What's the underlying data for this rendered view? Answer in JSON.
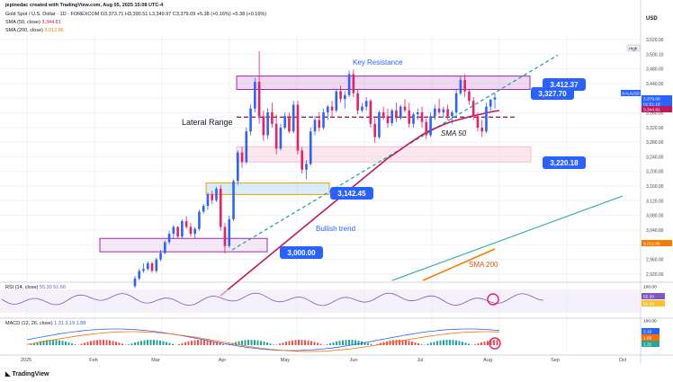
{
  "header": {
    "attribution": "jepinedac created with TradingView.com, Aug 05, 2025 15:08 UTC-4",
    "title": "Gold Spot / U.S. Dollar · 1D · FOREXCOM",
    "ohlc": "O3,373.71  H3,390.51  L3,349.97  C3,379.09  +5.38 (+0.16%)  +5.38 (+0.16%)",
    "sma50_legend": "SMA (50, close)",
    "sma50_value": "3,344.81",
    "sma200_legend": "SMA (200, close)",
    "sma200_value": "3,012.86"
  },
  "currency": "USD",
  "footer_logo": "TradingView",
  "colors": {
    "up": "#2962ff",
    "down": "#e91e63",
    "sma50": "#c2185b",
    "sma200": "#f57c00",
    "trendline": "#26a69a",
    "zone_purple": "#9c27b0",
    "zone_pink": "#f48fb1",
    "zone_blue": "#90caf9",
    "label_blue": "#2962ff",
    "grid": "#f0f3fa"
  },
  "annotations": {
    "key_resistance": "Key Resistance",
    "lateral_range": "Lateral Range",
    "bullish_trend": "Bullish trend",
    "sma50": "SMA 50",
    "sma200": "SMA 200",
    "levels": [
      "3,412.37",
      "3,327.70",
      "3,220.18",
      "3,142.45",
      "3,000.00"
    ],
    "high_tag": "High"
  },
  "price_axis": {
    "ticks": [
      "3,520.00",
      "3,500.10",
      "3,480.00",
      "3,440.00",
      "3,400.00",
      "3,360.00",
      "3,320.00",
      "3,280.00",
      "3,240.00",
      "3,200.00",
      "3,160.00",
      "3,120.00",
      "3,080.00",
      "3,040.00",
      "3,000.00",
      "2,960.00",
      "2,920.00"
    ],
    "tags": [
      {
        "text": "XAUUSD",
        "color": "#2962ff"
      },
      {
        "text": "3,379.09",
        "color": "#2962ff"
      },
      {
        "text": "01:51:18",
        "color": "#2962ff"
      },
      {
        "text": "3,344.81",
        "color": "#c2185b"
      },
      {
        "text": "3,012.86",
        "color": "#f57c00"
      }
    ]
  },
  "rsi": {
    "legend": "RSI (14, close)",
    "values_text": "55.30  51.68",
    "ticks": [
      "100.00",
      "55.30",
      "51.68"
    ]
  },
  "macd": {
    "legend": "MACD (12, 26, close)",
    "values_text": "1.31  3.19  1.88",
    "ticks": [
      "100.00",
      "3.19",
      "1.88",
      "1.31"
    ]
  },
  "time_axis": [
    "2025",
    "Feb",
    "Mar",
    "Apr",
    "May",
    "Jun",
    "Jul",
    "Aug",
    "Sep",
    "Oct"
  ],
  "chart_data": {
    "type": "candlestick",
    "title": "Gold Spot / U.S. Dollar · 1D · FOREXCOM",
    "ylim": [
      2900,
      3540
    ],
    "candles": [
      {
        "o": 2885,
        "h": 2912,
        "l": 2880,
        "c": 2905
      },
      {
        "o": 2905,
        "h": 2930,
        "l": 2900,
        "c": 2925
      },
      {
        "o": 2925,
        "h": 2945,
        "l": 2920,
        "c": 2930
      },
      {
        "o": 2930,
        "h": 2950,
        "l": 2925,
        "c": 2945
      },
      {
        "o": 2945,
        "h": 2950,
        "l": 2920,
        "c": 2925
      },
      {
        "o": 2925,
        "h": 2960,
        "l": 2920,
        "c": 2955
      },
      {
        "o": 2955,
        "h": 2980,
        "l": 2950,
        "c": 2972
      },
      {
        "o": 2972,
        "h": 3005,
        "l": 2968,
        "c": 3000
      },
      {
        "o": 3000,
        "h": 3030,
        "l": 2995,
        "c": 3022
      },
      {
        "o": 3022,
        "h": 3045,
        "l": 3010,
        "c": 3040
      },
      {
        "o": 3040,
        "h": 3042,
        "l": 3010,
        "c": 3015
      },
      {
        "o": 3015,
        "h": 3060,
        "l": 3010,
        "c": 3055
      },
      {
        "o": 3055,
        "h": 3068,
        "l": 3035,
        "c": 3040
      },
      {
        "o": 3040,
        "h": 3050,
        "l": 3015,
        "c": 3022
      },
      {
        "o": 3022,
        "h": 3040,
        "l": 3010,
        "c": 3035
      },
      {
        "o": 3035,
        "h": 3085,
        "l": 3030,
        "c": 3080
      },
      {
        "o": 3080,
        "h": 3100,
        "l": 3075,
        "c": 3095
      },
      {
        "o": 3095,
        "h": 3130,
        "l": 3085,
        "c": 3125
      },
      {
        "o": 3125,
        "h": 3135,
        "l": 3100,
        "c": 3110
      },
      {
        "o": 3110,
        "h": 3145,
        "l": 3105,
        "c": 3140
      },
      {
        "o": 3140,
        "h": 3150,
        "l": 3030,
        "c": 3040
      },
      {
        "o": 3040,
        "h": 3050,
        "l": 2970,
        "c": 2990
      },
      {
        "o": 2990,
        "h": 3070,
        "l": 2985,
        "c": 3060
      },
      {
        "o": 3060,
        "h": 3165,
        "l": 3055,
        "c": 3160
      },
      {
        "o": 3160,
        "h": 3240,
        "l": 3150,
        "c": 3235
      },
      {
        "o": 3235,
        "h": 3250,
        "l": 3195,
        "c": 3210
      },
      {
        "o": 3210,
        "h": 3300,
        "l": 3205,
        "c": 3290
      },
      {
        "o": 3290,
        "h": 3360,
        "l": 3280,
        "c": 3350
      },
      {
        "o": 3350,
        "h": 3430,
        "l": 3340,
        "c": 3420
      },
      {
        "o": 3420,
        "h": 3500,
        "l": 3310,
        "c": 3330
      },
      {
        "o": 3330,
        "h": 3345,
        "l": 3265,
        "c": 3280
      },
      {
        "o": 3280,
        "h": 3350,
        "l": 3270,
        "c": 3340
      },
      {
        "o": 3340,
        "h": 3365,
        "l": 3300,
        "c": 3310
      },
      {
        "o": 3310,
        "h": 3335,
        "l": 3230,
        "c": 3245
      },
      {
        "o": 3245,
        "h": 3310,
        "l": 3240,
        "c": 3300
      },
      {
        "o": 3300,
        "h": 3340,
        "l": 3295,
        "c": 3330
      },
      {
        "o": 3330,
        "h": 3340,
        "l": 3285,
        "c": 3290
      },
      {
        "o": 3290,
        "h": 3370,
        "l": 3285,
        "c": 3360
      },
      {
        "o": 3360,
        "h": 3370,
        "l": 3230,
        "c": 3240
      },
      {
        "o": 3240,
        "h": 3250,
        "l": 3180,
        "c": 3190
      },
      {
        "o": 3190,
        "h": 3215,
        "l": 3165,
        "c": 3205
      },
      {
        "o": 3205,
        "h": 3300,
        "l": 3200,
        "c": 3290
      },
      {
        "o": 3290,
        "h": 3330,
        "l": 3280,
        "c": 3320
      },
      {
        "o": 3320,
        "h": 3340,
        "l": 3290,
        "c": 3300
      },
      {
        "o": 3300,
        "h": 3350,
        "l": 3295,
        "c": 3340
      },
      {
        "o": 3340,
        "h": 3360,
        "l": 3320,
        "c": 3355
      },
      {
        "o": 3355,
        "h": 3370,
        "l": 3330,
        "c": 3345
      },
      {
        "o": 3345,
        "h": 3400,
        "l": 3340,
        "c": 3395
      },
      {
        "o": 3395,
        "h": 3410,
        "l": 3365,
        "c": 3375
      },
      {
        "o": 3375,
        "h": 3395,
        "l": 3350,
        "c": 3385
      },
      {
        "o": 3385,
        "h": 3450,
        "l": 3380,
        "c": 3440
      },
      {
        "o": 3440,
        "h": 3452,
        "l": 3380,
        "c": 3390
      },
      {
        "o": 3390,
        "h": 3400,
        "l": 3335,
        "c": 3345
      },
      {
        "o": 3345,
        "h": 3365,
        "l": 3340,
        "c": 3355
      },
      {
        "o": 3355,
        "h": 3380,
        "l": 3345,
        "c": 3370
      },
      {
        "o": 3370,
        "h": 3375,
        "l": 3300,
        "c": 3310
      },
      {
        "o": 3310,
        "h": 3325,
        "l": 3260,
        "c": 3275
      },
      {
        "o": 3275,
        "h": 3345,
        "l": 3270,
        "c": 3340
      },
      {
        "o": 3340,
        "h": 3355,
        "l": 3320,
        "c": 3330
      },
      {
        "o": 3330,
        "h": 3350,
        "l": 3300,
        "c": 3312
      },
      {
        "o": 3312,
        "h": 3350,
        "l": 3305,
        "c": 3345
      },
      {
        "o": 3345,
        "h": 3365,
        "l": 3315,
        "c": 3325
      },
      {
        "o": 3325,
        "h": 3360,
        "l": 3320,
        "c": 3355
      },
      {
        "o": 3355,
        "h": 3375,
        "l": 3340,
        "c": 3345
      },
      {
        "o": 3345,
        "h": 3365,
        "l": 3300,
        "c": 3310
      },
      {
        "o": 3310,
        "h": 3340,
        "l": 3300,
        "c": 3335
      },
      {
        "o": 3335,
        "h": 3350,
        "l": 3320,
        "c": 3340
      },
      {
        "o": 3340,
        "h": 3355,
        "l": 3300,
        "c": 3315
      },
      {
        "o": 3315,
        "h": 3325,
        "l": 3270,
        "c": 3280
      },
      {
        "o": 3280,
        "h": 3340,
        "l": 3275,
        "c": 3330
      },
      {
        "o": 3330,
        "h": 3360,
        "l": 3320,
        "c": 3350
      },
      {
        "o": 3350,
        "h": 3375,
        "l": 3335,
        "c": 3340
      },
      {
        "o": 3340,
        "h": 3355,
        "l": 3325,
        "c": 3348
      },
      {
        "o": 3348,
        "h": 3360,
        "l": 3320,
        "c": 3330
      },
      {
        "o": 3330,
        "h": 3345,
        "l": 3310,
        "c": 3340
      },
      {
        "o": 3340,
        "h": 3400,
        "l": 3335,
        "c": 3390
      },
      {
        "o": 3390,
        "h": 3435,
        "l": 3385,
        "c": 3425
      },
      {
        "o": 3425,
        "h": 3440,
        "l": 3380,
        "c": 3395
      },
      {
        "o": 3395,
        "h": 3400,
        "l": 3360,
        "c": 3370
      },
      {
        "o": 3370,
        "h": 3380,
        "l": 3320,
        "c": 3330
      },
      {
        "o": 3330,
        "h": 3340,
        "l": 3290,
        "c": 3300
      },
      {
        "o": 3300,
        "h": 3320,
        "l": 3275,
        "c": 3290
      },
      {
        "o": 3290,
        "h": 3365,
        "l": 3285,
        "c": 3355
      },
      {
        "o": 3355,
        "h": 3375,
        "l": 3345,
        "c": 3373
      },
      {
        "o": 3373.71,
        "h": 3390.51,
        "l": 3349.97,
        "c": 3379.09
      }
    ],
    "sma50": [
      2860,
      2875,
      2890,
      2905,
      2920,
      2935,
      2950,
      2965,
      2980,
      2995,
      3010,
      3025,
      3040,
      3055,
      3070,
      3085,
      3100,
      3115,
      3130,
      3145,
      3160,
      3175,
      3190,
      3205,
      3220,
      3232,
      3245,
      3258,
      3270,
      3282,
      3292,
      3300,
      3308,
      3315,
      3320,
      3325,
      3330,
      3334,
      3338,
      3342,
      3344.81
    ],
    "sma200": [
      2960,
      2972,
      2985,
      2997,
      3012.86
    ],
    "resistance_zone": [
      3400,
      3435
    ],
    "support_zones": [
      [
        3210,
        3250
      ],
      [
        3125,
        3155
      ],
      [
        2975,
        3010
      ]
    ],
    "levels": [
      3412.37,
      3327.7,
      3220.18,
      3142.45,
      3000.0
    ]
  }
}
